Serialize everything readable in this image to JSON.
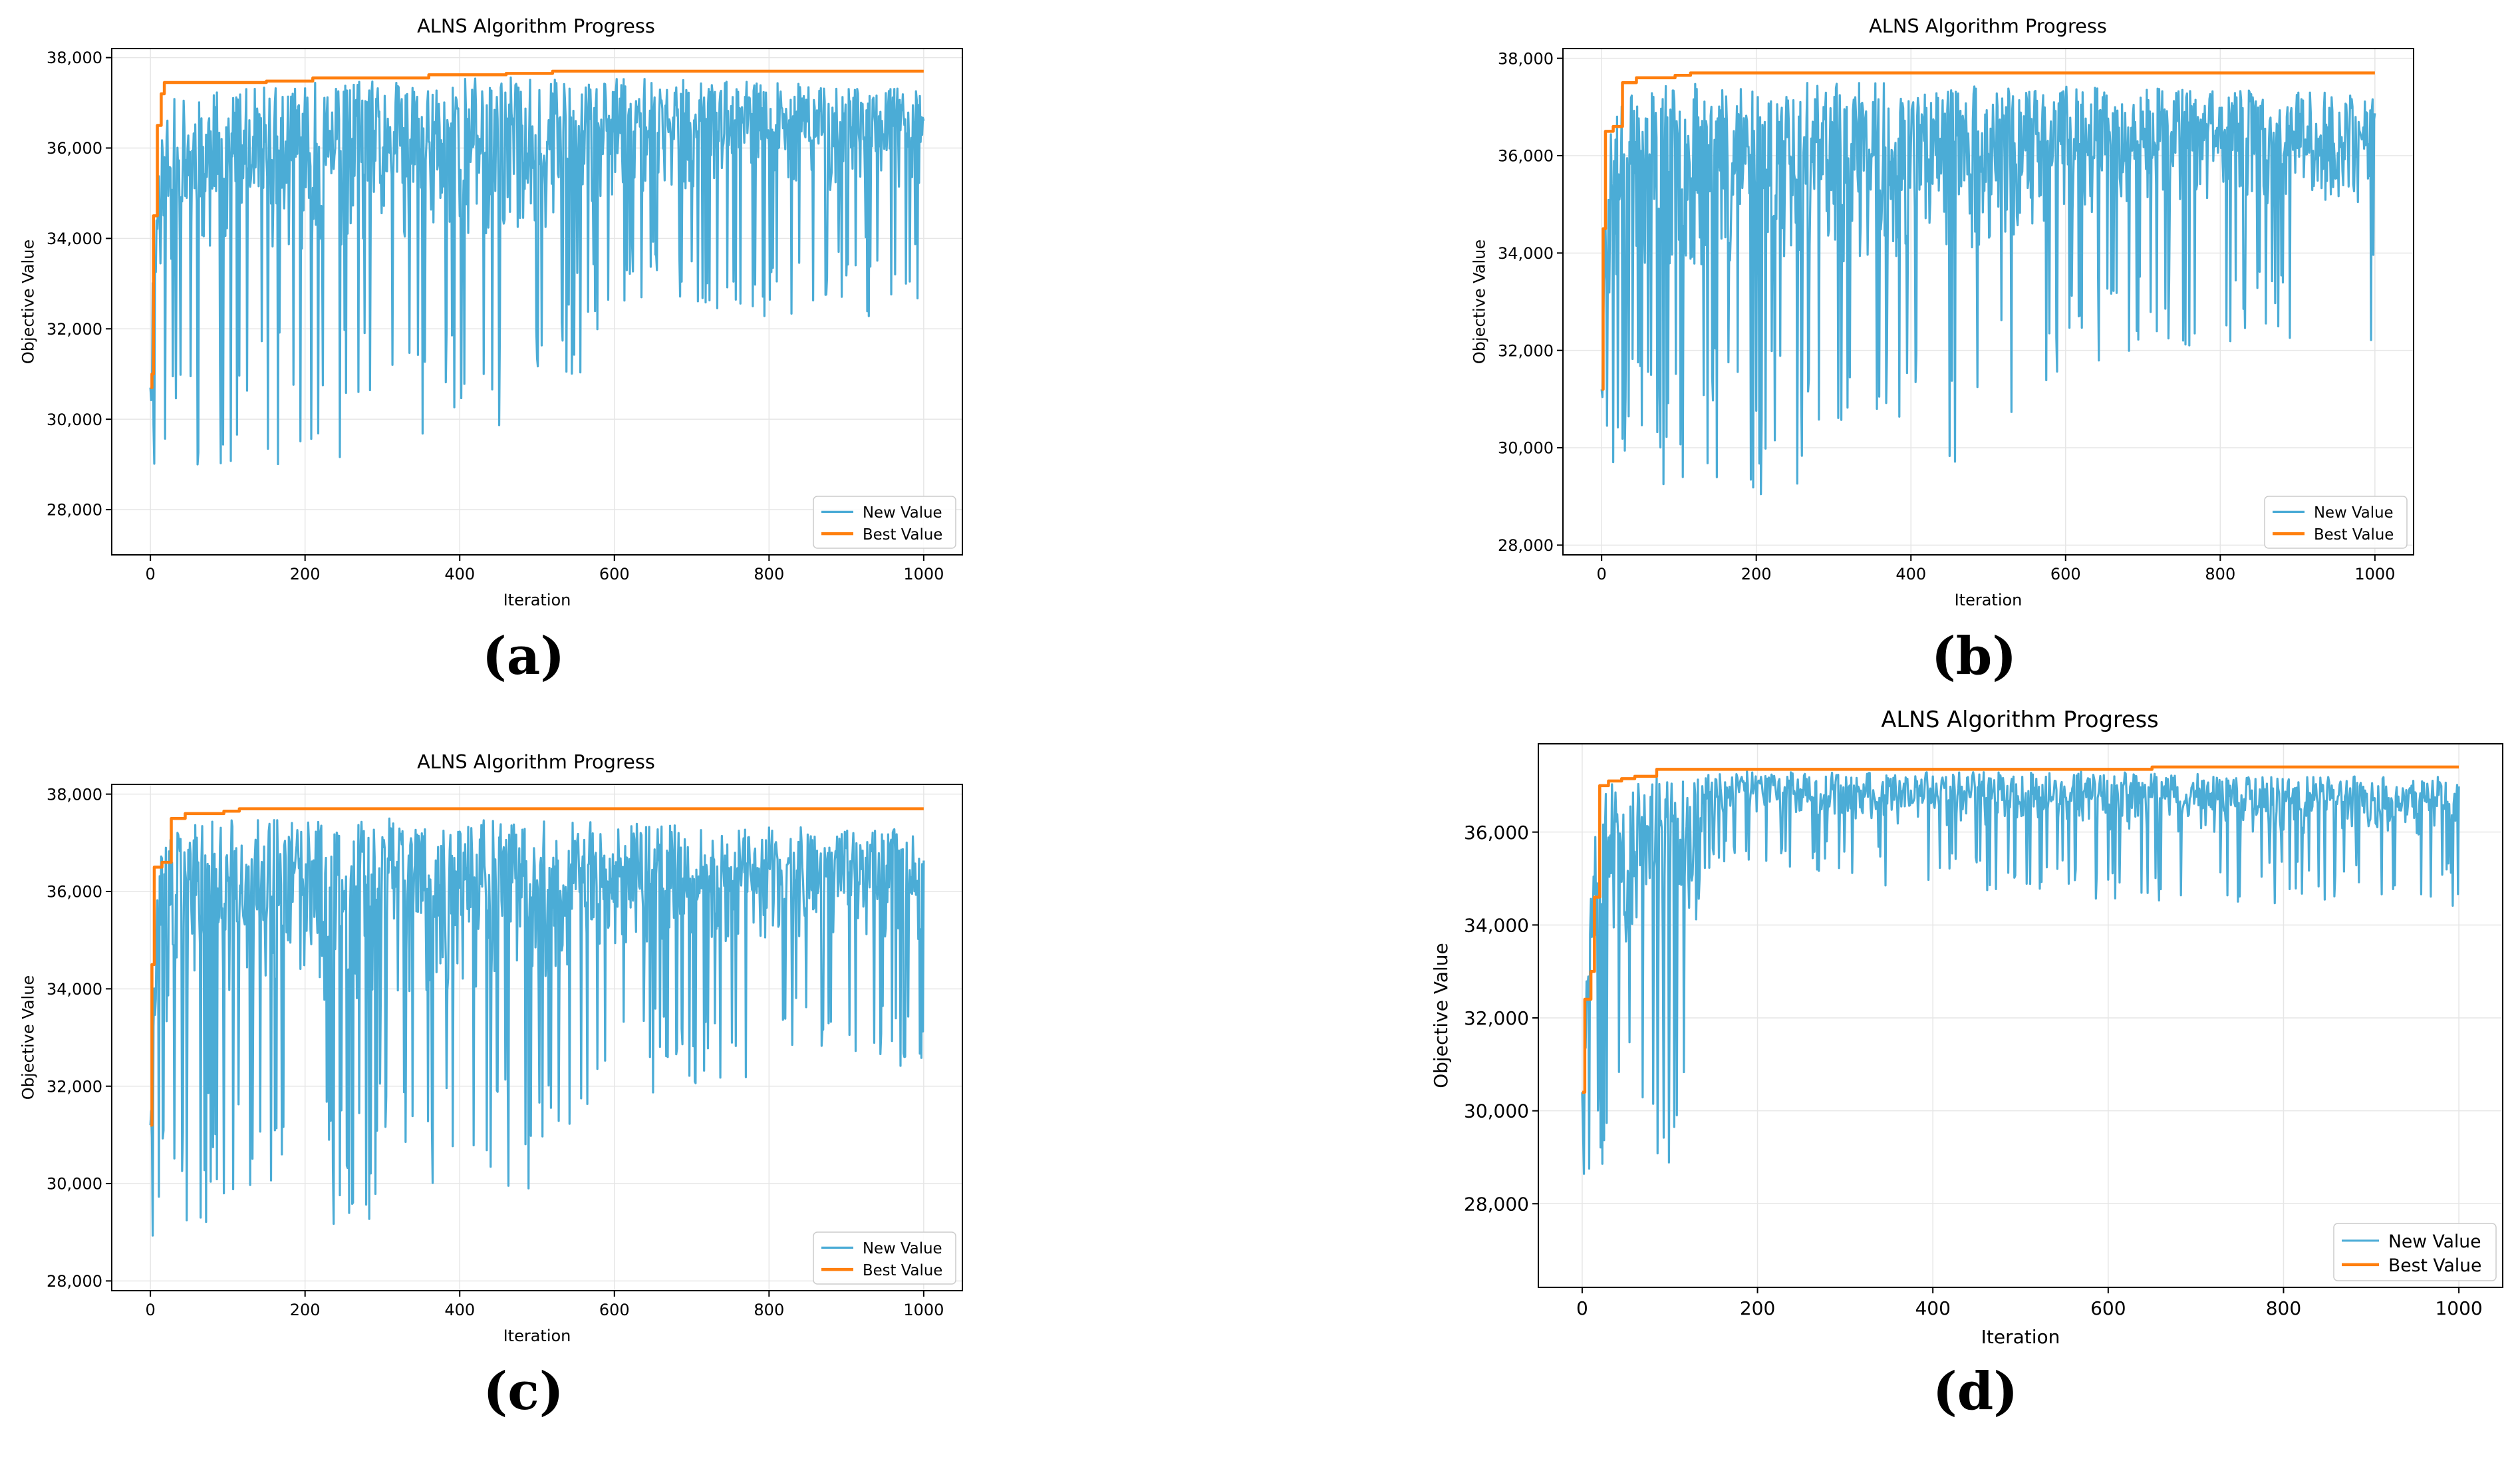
{
  "chart_data": [
    {
      "id": "a",
      "type": "line",
      "caption": "(a)",
      "title": "ALNS Algorithm Progress",
      "xlabel": "Iteration",
      "ylabel": "Objective Value",
      "xlim": [
        -50,
        1050
      ],
      "ylim": [
        27000,
        38200
      ],
      "xticks": [
        0,
        200,
        400,
        600,
        800,
        1000
      ],
      "yticks": [
        28000,
        30000,
        32000,
        34000,
        36000,
        38000
      ],
      "xtick_labels": [
        "0",
        "200",
        "400",
        "600",
        "800",
        "1000"
      ],
      "ytick_labels": [
        "28,000",
        "30,000",
        "32,000",
        "34,000",
        "36,000",
        "38,000"
      ],
      "grid": true,
      "legend_position": "lower-right",
      "series": [
        {
          "name": "New Value",
          "color": "#4bacd6",
          "style": "noisy",
          "x_end": 1000,
          "start": 30700,
          "profile": {
            "x": [
              0,
              4,
              10,
              30,
              100,
              200,
              300,
              400,
              500,
              600,
              700,
              800,
              1000
            ],
            "high": [
              30900,
              34000,
              36200,
              37100,
              37300,
              37450,
              37500,
              37600,
              37550,
              37550,
              37500,
              37450,
              37300
            ],
            "low": [
              27600,
              28500,
              29000,
              29000,
              29000,
              29000,
              29200,
              29400,
              30000,
              31800,
              32200,
              32200,
              32300
            ]
          },
          "seed": 11
        },
        {
          "name": "Best Value",
          "color": "#ff7f0e",
          "style": "step",
          "x_end": 1000,
          "steps": [
            [
              0,
              30700
            ],
            [
              2,
              31000
            ],
            [
              4,
              34500
            ],
            [
              9,
              36500
            ],
            [
              14,
              37200
            ],
            [
              18,
              37450
            ],
            [
              150,
              37480
            ],
            [
              210,
              37550
            ],
            [
              360,
              37620
            ],
            [
              460,
              37650
            ],
            [
              520,
              37700
            ]
          ]
        }
      ]
    },
    {
      "id": "b",
      "type": "line",
      "caption": "(b)",
      "title": "ALNS Algorithm Progress",
      "xlabel": "Iteration",
      "ylabel": "Objective Value",
      "xlim": [
        -50,
        1050
      ],
      "ylim": [
        27800,
        38200
      ],
      "xticks": [
        0,
        200,
        400,
        600,
        800,
        1000
      ],
      "yticks": [
        28000,
        30000,
        32000,
        34000,
        36000,
        38000
      ],
      "xtick_labels": [
        "0",
        "200",
        "400",
        "600",
        "800",
        "1000"
      ],
      "ytick_labels": [
        "28,000",
        "30,000",
        "32,000",
        "34,000",
        "36,000",
        "38,000"
      ],
      "grid": true,
      "legend_position": "lower-right",
      "series": [
        {
          "name": "New Value",
          "color": "#4bacd6",
          "style": "noisy",
          "x_end": 1000,
          "start": 31200,
          "profile": {
            "x": [
              0,
              4,
              10,
              30,
              100,
              200,
              300,
              400,
              500,
              600,
              700,
              800,
              1000
            ],
            "high": [
              31300,
              34500,
              36600,
              37300,
              37500,
              37500,
              37500,
              37500,
              37450,
              37450,
              37400,
              37350,
              37300
            ],
            "low": [
              28400,
              28400,
              28700,
              29000,
              29200,
              29000,
              29300,
              29600,
              29800,
              31500,
              32000,
              32100,
              32200
            ]
          },
          "seed": 23
        },
        {
          "name": "Best Value",
          "color": "#ff7f0e",
          "style": "step",
          "x_end": 1000,
          "steps": [
            [
              0,
              31200
            ],
            [
              2,
              34500
            ],
            [
              5,
              36500
            ],
            [
              15,
              36600
            ],
            [
              27,
              37500
            ],
            [
              45,
              37600
            ],
            [
              95,
              37650
            ],
            [
              115,
              37700
            ]
          ]
        }
      ]
    },
    {
      "id": "c",
      "type": "line",
      "caption": "(c)",
      "title": "ALNS Algorithm Progress",
      "xlabel": "Iteration",
      "ylabel": "Objective Value",
      "xlim": [
        -50,
        1050
      ],
      "ylim": [
        27800,
        38200
      ],
      "xticks": [
        0,
        200,
        400,
        600,
        800,
        1000
      ],
      "yticks": [
        28000,
        30000,
        32000,
        34000,
        36000,
        38000
      ],
      "xtick_labels": [
        "0",
        "200",
        "400",
        "600",
        "800",
        "1000"
      ],
      "ytick_labels": [
        "28,000",
        "30,000",
        "32,000",
        "34,000",
        "36,000",
        "38,000"
      ],
      "grid": true,
      "legend_position": "lower-right",
      "series": [
        {
          "name": "New Value",
          "color": "#4bacd6",
          "style": "noisy",
          "x_end": 1000,
          "start": 31200,
          "profile": {
            "x": [
              0,
              4,
              10,
              30,
              100,
              200,
              300,
              400,
              500,
              600,
              700,
              800,
              1000
            ],
            "high": [
              31300,
              34500,
              36600,
              37300,
              37500,
              37500,
              37500,
              37500,
              37450,
              37450,
              37400,
              37350,
              37300
            ],
            "low": [
              28400,
              28400,
              28700,
              29000,
              29200,
              29000,
              29300,
              29600,
              29800,
              31500,
              32000,
              32100,
              32200
            ]
          },
          "seed": 37
        },
        {
          "name": "Best Value",
          "color": "#ff7f0e",
          "style": "step",
          "x_end": 1000,
          "steps": [
            [
              0,
              31200
            ],
            [
              2,
              34500
            ],
            [
              5,
              36500
            ],
            [
              15,
              36600
            ],
            [
              27,
              37500
            ],
            [
              45,
              37600
            ],
            [
              95,
              37650
            ],
            [
              115,
              37700
            ]
          ]
        }
      ]
    },
    {
      "id": "d",
      "type": "line",
      "caption": "(d)",
      "title": "ALNS Algorithm Progress",
      "xlabel": "Iteration",
      "ylabel": "Objective Value",
      "xlim": [
        -50,
        1050
      ],
      "ylim": [
        26200,
        37900
      ],
      "xticks": [
        0,
        200,
        400,
        600,
        800,
        1000
      ],
      "yticks": [
        28000,
        30000,
        32000,
        34000,
        36000
      ],
      "xtick_labels": [
        "0",
        "200",
        "400",
        "600",
        "800",
        "1000"
      ],
      "ytick_labels": [
        "28,000",
        "30,000",
        "32,000",
        "34,000",
        "36,000"
      ],
      "grid": true,
      "legend_position": "lower-right",
      "series": [
        {
          "name": "New Value",
          "color": "#4bacd6",
          "style": "noisy",
          "x_end": 1000,
          "start": 30400,
          "profile": {
            "x": [
              0,
              3,
              8,
              20,
              60,
              130,
              140,
              200,
              400,
              600,
              800,
              1000
            ],
            "high": [
              30600,
              32500,
              35500,
              37100,
              37200,
              37250,
              37300,
              37300,
              37300,
              37300,
              37200,
              37200
            ],
            "low": [
              26600,
              28300,
              28200,
              28500,
              28600,
              28800,
              35000,
              35200,
              34700,
              34500,
              34400,
              34400
            ]
          },
          "seed": 53
        },
        {
          "name": "Best Value",
          "color": "#ff7f0e",
          "style": "step",
          "x_end": 1000,
          "steps": [
            [
              0,
              30400
            ],
            [
              3,
              32400
            ],
            [
              10,
              33000
            ],
            [
              14,
              34600
            ],
            [
              20,
              37000
            ],
            [
              30,
              37100
            ],
            [
              45,
              37150
            ],
            [
              60,
              37200
            ],
            [
              85,
              37350
            ],
            [
              650,
              37400
            ]
          ]
        }
      ]
    }
  ]
}
